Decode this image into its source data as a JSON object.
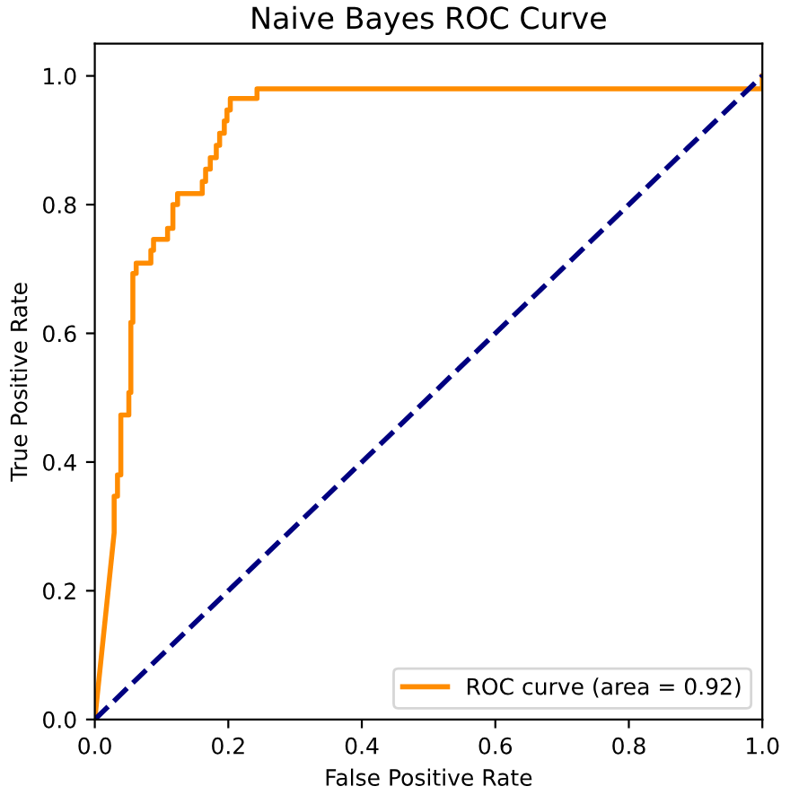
{
  "chart_data": {
    "type": "line",
    "title": "Naive Bayes ROC Curve",
    "xlabel": "False Positive Rate",
    "ylabel": "True Positive Rate",
    "series": [
      {
        "name": "ROC curve (area = 0.92)",
        "color": "#ff8c00",
        "line_style": "solid",
        "x": [
          0,
          0.029,
          0.029,
          0.034,
          0.034,
          0.039,
          0.039,
          0.051,
          0.051,
          0.054,
          0.054,
          0.057,
          0.057,
          0.062,
          0.062,
          0.084,
          0.084,
          0.088,
          0.088,
          0.109,
          0.109,
          0.117,
          0.117,
          0.124,
          0.124,
          0.161,
          0.161,
          0.166,
          0.166,
          0.173,
          0.173,
          0.182,
          0.182,
          0.187,
          0.187,
          0.194,
          0.194,
          0.198,
          0.198,
          0.203,
          0.203,
          0.243,
          0.243,
          1.0,
          1.0
        ],
        "values": [
          0,
          0.29,
          0.347,
          0.347,
          0.38,
          0.38,
          0.473,
          0.473,
          0.508,
          0.508,
          0.617,
          0.617,
          0.693,
          0.693,
          0.709,
          0.709,
          0.729,
          0.729,
          0.746,
          0.746,
          0.763,
          0.763,
          0.8,
          0.8,
          0.817,
          0.817,
          0.836,
          0.836,
          0.855,
          0.855,
          0.873,
          0.873,
          0.892,
          0.892,
          0.911,
          0.911,
          0.93,
          0.93,
          0.947,
          0.947,
          0.965,
          0.965,
          0.98,
          0.98,
          1.0
        ]
      },
      {
        "color": "#000080",
        "line_style": "dashed",
        "x": [
          0,
          1
        ],
        "values": [
          0,
          1
        ]
      }
    ],
    "xlim": [
      0.0,
      1.0
    ],
    "ylim": [
      0.0,
      1.05
    ],
    "xticks": [
      {
        "value": 0,
        "label": "0.0"
      },
      0.2,
      0.4,
      0.6,
      0.8,
      {
        "value": 1,
        "label": "1.0"
      }
    ],
    "yticks": [
      {
        "value": 0,
        "label": "0.0"
      },
      0.2,
      0.4,
      0.6,
      0.8,
      {
        "value": 1,
        "label": "1.0"
      }
    ],
    "legend": "lower right",
    "grid": false
  }
}
